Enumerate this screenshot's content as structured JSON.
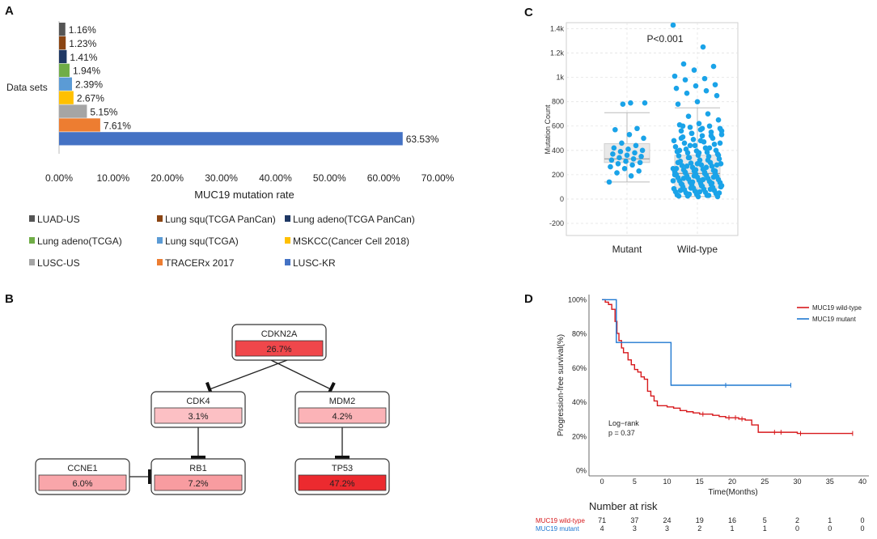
{
  "colors": {
    "gene_node_border": "#333333",
    "wildtype_red": "#d7191c",
    "mutant_blue": "#1f78d1",
    "scatter_blue": "#1aa3e8"
  },
  "chart_data": [
    {
      "panel": "A",
      "type": "bar",
      "orientation": "horizontal",
      "ylabel": "Data sets",
      "xlabel": "MUC19 mutation rate",
      "xlim": [
        0,
        70
      ],
      "xticks": [
        "0.00%",
        "10.00%",
        "20.00%",
        "30.00%",
        "40.00%",
        "50.00%",
        "60.00%",
        "70.00%"
      ],
      "series": [
        {
          "name": "LUAD-US",
          "value": 1.16,
          "label": "1.16%",
          "color": "#555555"
        },
        {
          "name": "Lung squ(TCGA PanCan)",
          "value": 1.23,
          "label": "1.23%",
          "color": "#8b4513"
        },
        {
          "name": "Lung adeno(TCGA PanCan)",
          "value": 1.41,
          "label": "1.41%",
          "color": "#1f3864"
        },
        {
          "name": "Lung adeno(TCGA)",
          "value": 1.94,
          "label": "1.94%",
          "color": "#70ad47"
        },
        {
          "name": "Lung squ(TCGA)",
          "value": 2.39,
          "label": "2.39%",
          "color": "#5b9bd5"
        },
        {
          "name": "MSKCC(Cancer Cell 2018)",
          "value": 2.67,
          "label": "2.67%",
          "color": "#ffc000"
        },
        {
          "name": "LUSC-US",
          "value": 5.15,
          "label": "5.15%",
          "color": "#a5a5a5"
        },
        {
          "name": "TRACERx 2017",
          "value": 7.61,
          "label": "7.61%",
          "color": "#ed7d31"
        },
        {
          "name": "LUSC-KR",
          "value": 63.53,
          "label": "63.53%",
          "color": "#4472c4"
        }
      ],
      "legend_order": [
        "LUAD-US",
        "Lung squ(TCGA PanCan)",
        "Lung adeno(TCGA PanCan)",
        "Lung adeno(TCGA)",
        "Lung squ(TCGA)",
        "MSKCC(Cancer Cell 2018)",
        "LUSC-US",
        "TRACERx 2017",
        "LUSC-KR"
      ]
    },
    {
      "panel": "B",
      "type": "network",
      "nodes": [
        {
          "id": "CDKN2A",
          "label": "CDKN2A",
          "value": "26.7%",
          "color": "#f0474b"
        },
        {
          "id": "CDK4",
          "label": "CDK4",
          "value": "3.1%",
          "color": "#fcc0c4"
        },
        {
          "id": "MDM2",
          "label": "MDM2",
          "value": "4.2%",
          "color": "#fbb3b7"
        },
        {
          "id": "CCNE1",
          "label": "CCNE1",
          "value": "6.0%",
          "color": "#f9a6aa"
        },
        {
          "id": "RB1",
          "label": "RB1",
          "value": "7.2%",
          "color": "#f89ca0"
        },
        {
          "id": "TP53",
          "label": "TP53",
          "value": "47.2%",
          "color": "#ec2a2f"
        }
      ],
      "edges": [
        {
          "from": "CDKN2A",
          "to": "CDK4",
          "type": "inhibit"
        },
        {
          "from": "CDKN2A",
          "to": "MDM2",
          "type": "inhibit"
        },
        {
          "from": "CDK4",
          "to": "RB1",
          "type": "inhibit"
        },
        {
          "from": "MDM2",
          "to": "TP53",
          "type": "inhibit"
        },
        {
          "from": "CCNE1",
          "to": "RB1",
          "type": "inhibit"
        }
      ]
    },
    {
      "panel": "C",
      "type": "scatter",
      "subtype": "box-jitter",
      "ylabel": "Mutation Count",
      "ylim": [
        -300,
        1450
      ],
      "yticks": [
        -200,
        0,
        200,
        400,
        600,
        800,
        1000,
        1200,
        1400
      ],
      "ytick_labels": [
        "-200",
        "0",
        "200",
        "400",
        "600",
        "800",
        "1k",
        "1.2k",
        "1.4k"
      ],
      "categories": [
        "Mutant",
        "Wild-type"
      ],
      "annotation": "P<0.001",
      "boxes": [
        {
          "group": "Mutant",
          "q1": 300,
          "median": 330,
          "q3": 455,
          "whisker_low": 140,
          "whisker_high": 710
        },
        {
          "group": "Wild-type",
          "q1": 90,
          "median": 210,
          "q3": 360,
          "whisker_low": 20,
          "whisker_high": 750
        }
      ],
      "points": {
        "Mutant": [
          140,
          190,
          215,
          230,
          250,
          265,
          280,
          290,
          300,
          310,
          320,
          330,
          340,
          350,
          360,
          370,
          380,
          390,
          400,
          410,
          420,
          440,
          460,
          500,
          530,
          570,
          580,
          780,
          790,
          790
        ],
        "Wild-type": [
          1430,
          1250,
          1110,
          1090,
          1060,
          1010,
          990,
          980,
          940,
          930,
          910,
          890,
          870,
          850,
          800,
          780,
          700,
          680,
          650,
          620,
          610,
          600,
          590,
          580,
          570,
          560,
          550,
          540,
          530,
          520,
          510,
          500,
          490,
          480,
          470,
          460,
          450,
          440,
          430,
          420,
          410,
          400,
          395,
          390,
          385,
          380,
          370,
          360,
          355,
          350,
          340,
          330,
          320,
          310,
          300,
          295,
          290,
          280,
          275,
          270,
          260,
          250,
          245,
          240,
          235,
          230,
          225,
          220,
          215,
          210,
          205,
          200,
          195,
          190,
          185,
          180,
          175,
          170,
          165,
          160,
          155,
          150,
          145,
          140,
          135,
          130,
          125,
          120,
          115,
          110,
          105,
          100,
          95,
          90,
          85,
          80,
          75,
          70,
          65,
          60,
          55,
          50,
          45,
          40,
          35,
          30,
          25,
          20,
          20,
          25,
          30,
          40,
          50,
          60,
          70,
          80,
          90,
          100,
          110,
          120,
          130,
          140,
          150,
          160,
          170,
          180,
          190,
          200,
          210,
          220,
          230,
          240,
          250,
          260,
          270,
          280,
          290,
          300,
          320,
          340,
          360,
          380,
          400,
          420,
          440,
          460,
          480,
          500,
          520,
          540,
          560,
          580,
          600
        ]
      }
    },
    {
      "panel": "D",
      "type": "line",
      "subtype": "kaplan-meier",
      "ylabel": "Progression-free survival(%)",
      "xlabel": "Time(Months)",
      "xlim": [
        -2,
        41
      ],
      "ylim": [
        -3,
        103
      ],
      "xticks": [
        0,
        5,
        10,
        15,
        20,
        25,
        30,
        35,
        40
      ],
      "yticks": [
        0,
        20,
        40,
        60,
        80,
        100
      ],
      "ytick_labels": [
        "0%",
        "20%",
        "40%",
        "60%",
        "80%",
        "100%"
      ],
      "annotation_line1": "Log−rank",
      "annotation_line2": "p = 0.37",
      "series": [
        {
          "name": "MUC19 wild-type",
          "color": "#d7191c",
          "steps": [
            [
              0,
              100
            ],
            [
              0.5,
              98.6
            ],
            [
              1,
              97.2
            ],
            [
              1.5,
              94.4
            ],
            [
              2,
              87.3
            ],
            [
              2.3,
              80.3
            ],
            [
              2.6,
              76.1
            ],
            [
              3,
              71.8
            ],
            [
              3.3,
              69
            ],
            [
              4,
              64.8
            ],
            [
              4.5,
              62
            ],
            [
              5,
              59.2
            ],
            [
              5.5,
              57.7
            ],
            [
              6,
              54.9
            ],
            [
              6.5,
              53.5
            ],
            [
              7,
              46.5
            ],
            [
              7.5,
              43.7
            ],
            [
              8,
              40.8
            ],
            [
              8.5,
              38
            ],
            [
              10,
              37.3
            ],
            [
              11,
              36.6
            ],
            [
              12,
              35.2
            ],
            [
              13,
              34.5
            ],
            [
              14,
              33.8
            ],
            [
              15,
              33.1
            ],
            [
              17,
              32.4
            ],
            [
              18,
              31.7
            ],
            [
              19,
              31
            ],
            [
              20,
              31
            ],
            [
              21,
              30.3
            ],
            [
              22,
              29.6
            ],
            [
              23,
              26.8
            ],
            [
              24,
              22.5
            ],
            [
              26,
              22.5
            ],
            [
              30,
              21.8
            ],
            [
              38.5,
              21.8
            ]
          ],
          "censors": [
            [
              15.5,
              33.1
            ],
            [
              19.5,
              31
            ],
            [
              20.5,
              31
            ],
            [
              21.5,
              30.3
            ],
            [
              26.5,
              22.5
            ],
            [
              27.5,
              22.5
            ],
            [
              30.5,
              21.8
            ],
            [
              38.5,
              21.8
            ]
          ]
        },
        {
          "name": "MUC19 mutant",
          "color": "#1f78d1",
          "steps": [
            [
              0,
              100
            ],
            [
              2,
              100
            ],
            [
              2.2,
              75
            ],
            [
              10.5,
              75
            ],
            [
              10.6,
              50
            ],
            [
              29,
              50
            ]
          ],
          "censors": [
            [
              19,
              50
            ],
            [
              29,
              50
            ]
          ]
        }
      ],
      "risk_table": {
        "title": "Number at risk",
        "rows": [
          {
            "label": "MUC19 wild-type",
            "color": "#d7191c",
            "values": [
              "71",
              "37",
              "24",
              "19",
              "16",
              "5",
              "2",
              "1",
              "0"
            ]
          },
          {
            "label": "MUC19 mutant",
            "color": "#1f78d1",
            "values": [
              "4",
              "3",
              "3",
              "2",
              "1",
              "1",
              "0",
              "0",
              "0"
            ]
          }
        ]
      }
    }
  ],
  "panel_labels": {
    "a": "A",
    "b": "B",
    "c": "C",
    "d": "D"
  }
}
